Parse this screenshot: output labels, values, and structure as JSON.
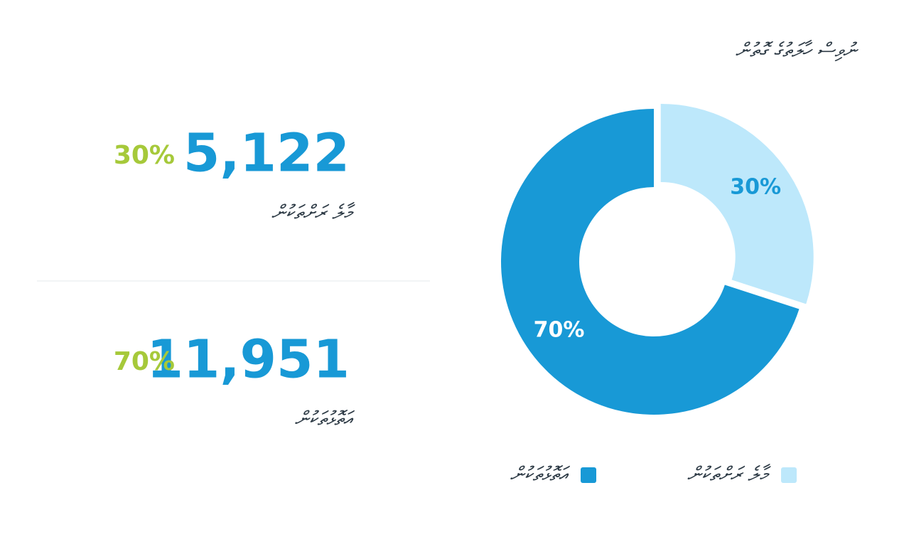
{
  "chart_data": {
    "type": "donut",
    "title": "ނުވިސް ހާލަތުގެ ގޮތުން",
    "categories": [
      "މާލެ ރަށްތަކުން",
      "އަތޮޅުތަކުން"
    ],
    "values": [
      30,
      70
    ],
    "value_labels": [
      "30%",
      "70%"
    ],
    "colors": [
      "#bde8fb",
      "#1899d6"
    ],
    "label_colors": [
      "#1899d6",
      "#ffffff"
    ]
  },
  "stats": [
    {
      "number": "5,122",
      "percent": "30%",
      "label": "މާލެ ރަށްތަކުން"
    },
    {
      "number": "11,951",
      "percent": "70%",
      "label": "އަތޮޅުތަކުން"
    }
  ]
}
